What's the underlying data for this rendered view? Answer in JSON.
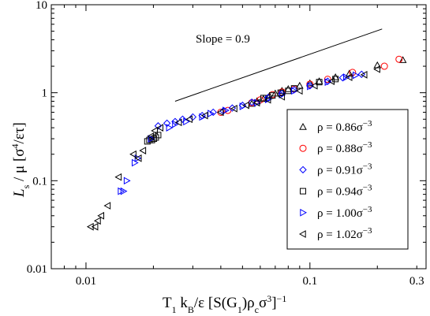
{
  "chart_data": {
    "type": "scatter",
    "xscale": "log",
    "yscale": "log",
    "xlim": [
      0.007,
      0.33
    ],
    "ylim": [
      0.01,
      10
    ],
    "x_ticks": [
      {
        "value": 0.01,
        "label": "0.01"
      },
      {
        "value": 0.1,
        "label": "0.1"
      },
      {
        "value": 0.3,
        "label": "0.3"
      }
    ],
    "y_ticks": [
      {
        "value": 0.01,
        "label": "0.01"
      },
      {
        "value": 0.1,
        "label": "0.1"
      },
      {
        "value": 1,
        "label": "1"
      },
      {
        "value": 10,
        "label": "10"
      }
    ],
    "xlabel_parts": {
      "a": "T",
      "a_sub": "1",
      "b": " k",
      "b_sub": "B",
      "c": "/ε [S(G",
      "c_sub": "1",
      "d": ")ρ",
      "d_sub": "c",
      "e": "σ",
      "e_sup": "3",
      "f": "]",
      "f_sup": "−1"
    },
    "ylabel_parts": {
      "a": "L",
      "a_sub": "s",
      "b": " / μ  [σ",
      "b_sup": "4",
      "c": "/ετ]"
    },
    "annotation": {
      "text": "Slope = 0.9",
      "line": {
        "x": [
          0.025,
          0.21
        ],
        "y": [
          0.8,
          5.3
        ]
      }
    },
    "legend_position": "bottom-right",
    "series": [
      {
        "name": "ρ = 0.86σ",
        "name_sup": "−3",
        "marker": "triangle-up",
        "color": "#000000",
        "points": [
          [
            0.055,
            0.75
          ],
          [
            0.058,
            0.8
          ],
          [
            0.062,
            0.85
          ],
          [
            0.066,
            0.92
          ],
          [
            0.07,
            0.98
          ],
          [
            0.075,
            1.05
          ],
          [
            0.08,
            1.1
          ],
          [
            0.09,
            1.2
          ],
          [
            0.1,
            1.28
          ],
          [
            0.11,
            1.35
          ],
          [
            0.13,
            1.5
          ],
          [
            0.15,
            1.65
          ],
          [
            0.2,
            2.05
          ],
          [
            0.26,
            2.35
          ]
        ]
      },
      {
        "name": "ρ = 0.88σ",
        "name_sup": "−3",
        "marker": "circle",
        "color": "#ff0000",
        "points": [
          [
            0.04,
            0.6
          ],
          [
            0.043,
            0.63
          ],
          [
            0.055,
            0.77
          ],
          [
            0.06,
            0.83
          ],
          [
            0.068,
            0.95
          ],
          [
            0.075,
            1.02
          ],
          [
            0.085,
            1.1
          ],
          [
            0.1,
            1.25
          ],
          [
            0.12,
            1.42
          ],
          [
            0.155,
            1.7
          ],
          [
            0.215,
            2.0
          ],
          [
            0.25,
            2.4
          ]
        ]
      },
      {
        "name": "ρ = 0.91σ",
        "name_sup": "−3",
        "marker": "diamond",
        "color": "#0000ff",
        "points": [
          [
            0.021,
            0.42
          ],
          [
            0.023,
            0.45
          ],
          [
            0.025,
            0.47
          ],
          [
            0.027,
            0.5
          ],
          [
            0.03,
            0.53
          ],
          [
            0.033,
            0.55
          ],
          [
            0.037,
            0.6
          ],
          [
            0.041,
            0.62
          ],
          [
            0.045,
            0.67
          ],
          [
            0.05,
            0.72
          ],
          [
            0.055,
            0.78
          ],
          [
            0.065,
            0.88
          ],
          [
            0.075,
            0.98
          ],
          [
            0.085,
            1.08
          ],
          [
            0.1,
            1.2
          ],
          [
            0.12,
            1.35
          ],
          [
            0.14,
            1.48
          ],
          [
            0.17,
            1.62
          ]
        ]
      },
      {
        "name": "ρ = 0.94σ",
        "name_sup": "−3",
        "marker": "square",
        "color": "#000000",
        "points": [
          [
            0.0188,
            0.28
          ],
          [
            0.0192,
            0.29
          ],
          [
            0.0197,
            0.29
          ],
          [
            0.0201,
            0.3
          ],
          [
            0.0205,
            0.31
          ],
          [
            0.021,
            0.33
          ],
          [
            0.062,
            0.87
          ],
          [
            0.068,
            0.93
          ],
          [
            0.074,
            1.0
          ],
          [
            0.08,
            1.05
          ],
          [
            0.085,
            1.12
          ],
          [
            0.11,
            1.32
          ],
          [
            0.13,
            1.43
          ]
        ]
      },
      {
        "name": "ρ = 1.00σ",
        "name_sup": "−3",
        "marker": "triangle-right",
        "color": "#0000ff",
        "points": [
          [
            0.0143,
            0.076
          ],
          [
            0.0147,
            0.076
          ],
          [
            0.0152,
            0.1
          ],
          [
            0.0165,
            0.16
          ],
          [
            0.017,
            0.18
          ],
          [
            0.0195,
            0.3
          ],
          [
            0.0235,
            0.4
          ],
          [
            0.025,
            0.44
          ],
          [
            0.028,
            0.47
          ],
          [
            0.033,
            0.53
          ],
          [
            0.036,
            0.58
          ],
          [
            0.042,
            0.63
          ],
          [
            0.05,
            0.7
          ],
          [
            0.058,
            0.77
          ],
          [
            0.065,
            0.84
          ],
          [
            0.075,
            0.95
          ],
          [
            0.085,
            1.05
          ],
          [
            0.1,
            1.18
          ],
          [
            0.12,
            1.32
          ],
          [
            0.145,
            1.5
          ],
          [
            0.16,
            1.58
          ]
        ]
      },
      {
        "name": "ρ = 1.02σ",
        "name_sup": "−3",
        "marker": "triangle-left",
        "color": "#000000",
        "points": [
          [
            0.0105,
            0.03
          ],
          [
            0.011,
            0.03
          ],
          [
            0.0113,
            0.035
          ],
          [
            0.0117,
            0.04
          ],
          [
            0.0125,
            0.052
          ],
          [
            0.014,
            0.11
          ],
          [
            0.0163,
            0.2
          ],
          [
            0.0172,
            0.18
          ],
          [
            0.018,
            0.22
          ],
          [
            0.0195,
            0.32
          ],
          [
            0.0203,
            0.37
          ],
          [
            0.0215,
            0.4
          ],
          [
            0.026,
            0.46
          ],
          [
            0.029,
            0.5
          ],
          [
            0.034,
            0.55
          ],
          [
            0.04,
            0.6
          ],
          [
            0.046,
            0.66
          ],
          [
            0.052,
            0.72
          ],
          [
            0.058,
            0.77
          ],
          [
            0.065,
            0.83
          ],
          [
            0.075,
            0.9
          ],
          [
            0.09,
            1.05
          ],
          [
            0.105,
            1.2
          ],
          [
            0.125,
            1.35
          ],
          [
            0.15,
            1.5
          ],
          [
            0.175,
            1.6
          ],
          [
            0.2,
            1.85
          ]
        ]
      }
    ]
  }
}
